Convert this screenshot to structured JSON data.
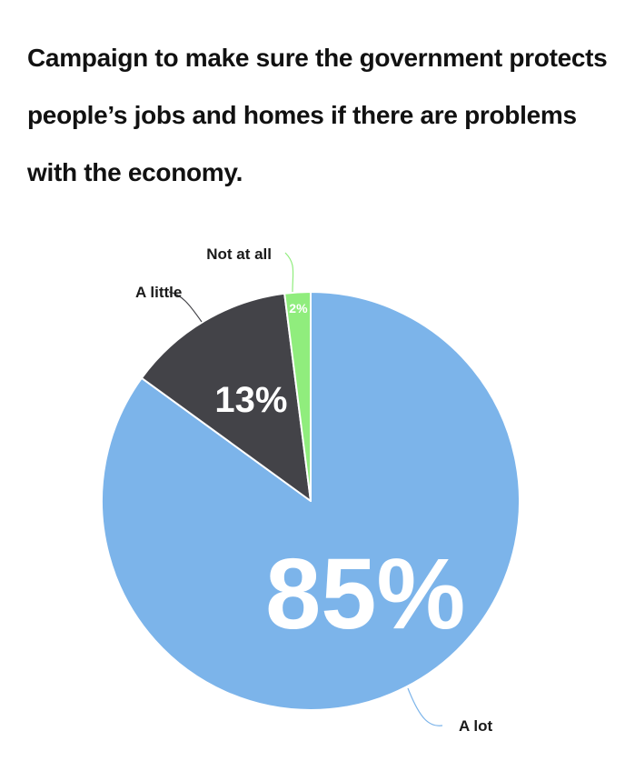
{
  "title": "Campaign to make sure the government protects people’s jobs and homes if there are problems with the economy.",
  "chart_data": {
    "type": "pie",
    "title": "Campaign to make sure the government protects people’s jobs and homes if there are problems with the economy.",
    "categories": [
      "A lot",
      "A little",
      "Not at all"
    ],
    "values": [
      85,
      13,
      2
    ],
    "value_labels": [
      "85%",
      "13%",
      "2%"
    ],
    "colors": [
      "#7cb4ea",
      "#434348",
      "#90ed7d"
    ],
    "label_placement": "outside with connector lines",
    "start": "12 o'clock, clockwise"
  }
}
